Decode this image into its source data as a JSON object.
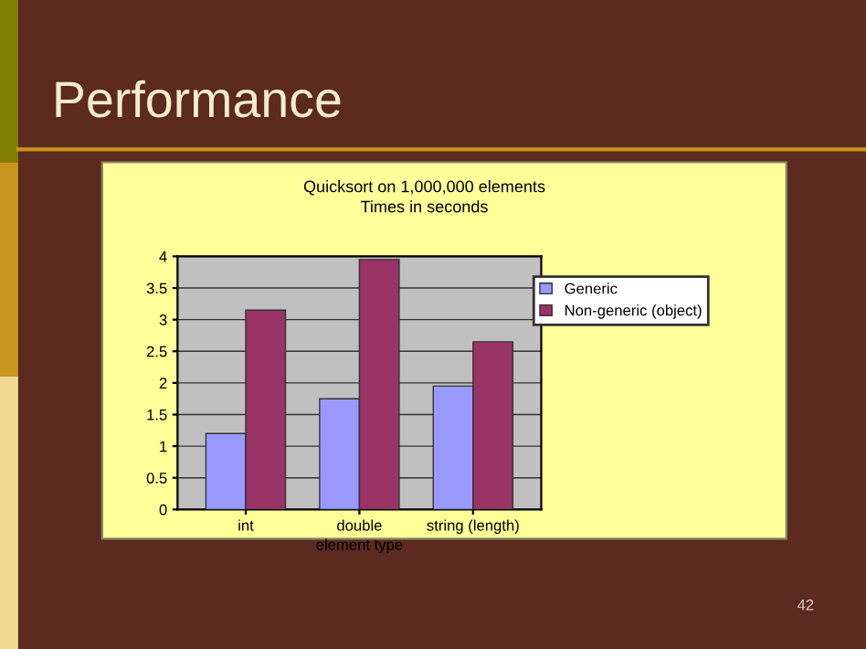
{
  "chart_data": {
    "type": "bar",
    "title": "Performance",
    "subtitle": "Quicksort on 1,000,000 elements\nTimes in seconds",
    "xlabel": "element type",
    "categories": [
      "int",
      "double",
      "string (length)"
    ],
    "series": [
      {
        "name": "Generic",
        "color": "#9999ff",
        "values": [
          1.2,
          1.75,
          1.95
        ]
      },
      {
        "name": "Non-generic (object)",
        "color": "#993366",
        "values": [
          3.15,
          3.95,
          2.65
        ]
      }
    ],
    "ylim": [
      0,
      4
    ],
    "yticks": [
      0,
      0.5,
      1,
      1.5,
      2,
      2.5,
      3,
      3.5,
      4
    ],
    "grid": "y",
    "legend": "top right",
    "annotations": [
      "42"
    ]
  }
}
